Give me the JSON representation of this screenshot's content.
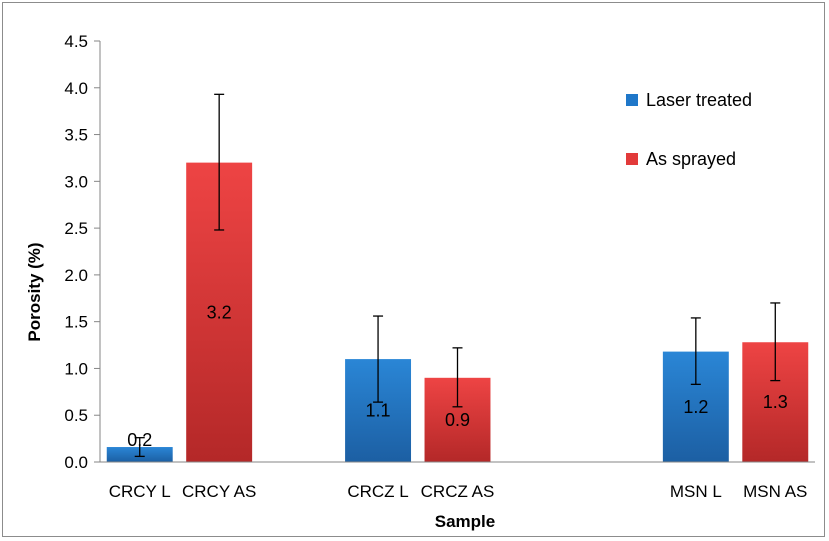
{
  "chart_data": {
    "type": "bar",
    "title": "",
    "xlabel": "Sample",
    "ylabel": "Porosity (%)",
    "ylim": [
      0,
      4.5
    ],
    "yticks": [
      "0.0",
      "0.5",
      "1.0",
      "1.5",
      "2.0",
      "2.5",
      "3.0",
      "3.5",
      "4.0",
      "4.5"
    ],
    "grid": false,
    "legend_position": "top-right",
    "legend": [
      {
        "name": "Laser treated",
        "color": "#1f77c9"
      },
      {
        "name": "As sprayed",
        "color": "#e23a3a"
      }
    ],
    "bars": [
      {
        "category": "CRCY L",
        "series": "Laser treated",
        "value": 0.16,
        "label": "0.2",
        "err_low": 0.06,
        "err_high": 0.26
      },
      {
        "category": "CRCY AS",
        "series": "As sprayed",
        "value": 3.2,
        "label": "3.2",
        "err_low": 2.48,
        "err_high": 3.93
      },
      {
        "category": "CRCZ L",
        "series": "Laser treated",
        "value": 1.1,
        "label": "1.1",
        "err_low": 0.64,
        "err_high": 1.56
      },
      {
        "category": "CRCZ AS",
        "series": "As sprayed",
        "value": 0.9,
        "label": "0.9",
        "err_low": 0.59,
        "err_high": 1.22
      },
      {
        "category": "MSN L",
        "series": "Laser treated",
        "value": 1.18,
        "label": "1.2",
        "err_low": 0.83,
        "err_high": 1.54
      },
      {
        "category": "MSN AS",
        "series": "As sprayed",
        "value": 1.28,
        "label": "1.3",
        "err_low": 0.87,
        "err_high": 1.7
      }
    ]
  }
}
